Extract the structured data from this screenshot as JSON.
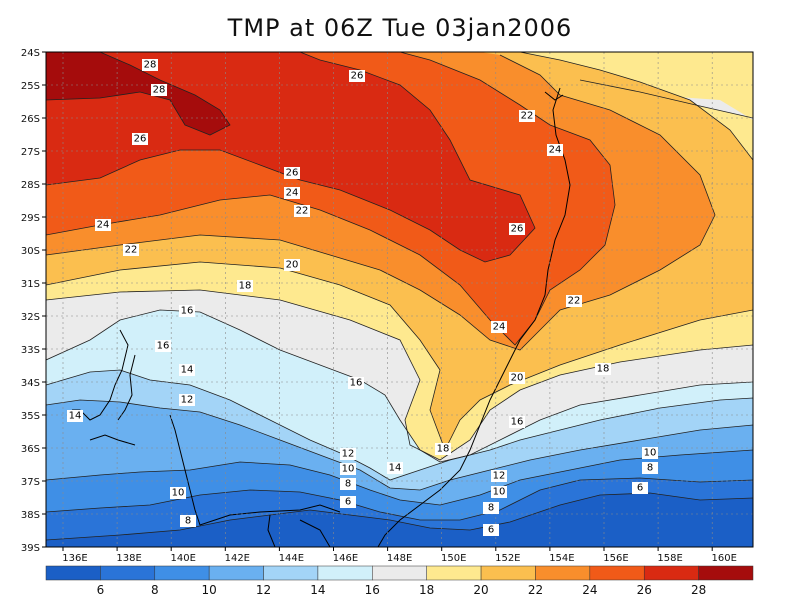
{
  "title": "TMP at 06Z Tue 03jan2006",
  "lat_labels": [
    "24S",
    "25S",
    "26S",
    "27S",
    "28S",
    "29S",
    "30S",
    "31S",
    "32S",
    "33S",
    "34S",
    "35S",
    "36S",
    "37S",
    "38S",
    "39S"
  ],
  "lon_labels": [
    "136E",
    "138E",
    "140E",
    "142E",
    "144E",
    "146E",
    "148E",
    "150E",
    "152E",
    "154E",
    "156E",
    "158E",
    "160E"
  ],
  "colorbar": {
    "colors": [
      "#1b5fc6",
      "#2a74d8",
      "#3f8fe6",
      "#6ab0f0",
      "#a3d4f7",
      "#d1f0fa",
      "#ebebeb",
      "#fee98f",
      "#fbbf4f",
      "#f98e2c",
      "#f15a18",
      "#d92a12",
      "#a50c0c"
    ],
    "labels": [
      "6",
      "8",
      "10",
      "12",
      "14",
      "16",
      "18",
      "20",
      "22",
      "24",
      "26",
      "28"
    ]
  },
  "contour_labels": [
    "28",
    "28",
    "26",
    "26",
    "22",
    "24",
    "26",
    "24",
    "22",
    "24",
    "26",
    "22",
    "20",
    "18",
    "16",
    "22",
    "24",
    "18",
    "16",
    "14",
    "14",
    "16",
    "20",
    "12",
    "16",
    "18",
    "12",
    "10",
    "14",
    "10",
    "8",
    "8",
    "12",
    "10",
    "6",
    "10",
    "8",
    "8",
    "6",
    "6"
  ]
}
